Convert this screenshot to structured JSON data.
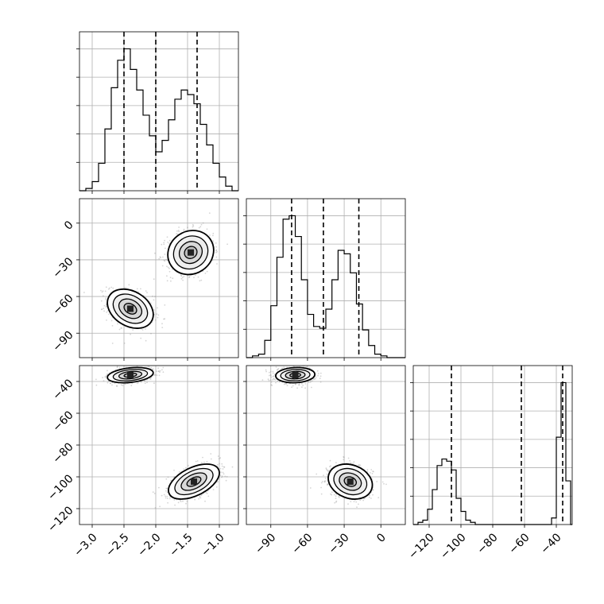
{
  "chart_data": {
    "type": "corner",
    "parameters": 3,
    "grid": true,
    "style": {
      "ink": "#000000",
      "grid": "#b0b0b0",
      "scatter": "#888888",
      "background": "#ffffff"
    },
    "axes": [
      {
        "range": [
          -3.2,
          -0.7
        ],
        "ticks": [
          -3.0,
          -2.5,
          -2.0,
          -1.5,
          -1.0
        ],
        "tick_labels": [
          "−3.0",
          "−2.5",
          "−2.0",
          "−1.5",
          "−1.0"
        ],
        "quantiles": [
          -2.5,
          -2.0,
          -1.35
        ]
      },
      {
        "range": [
          -110,
          20
        ],
        "ticks": [
          -90,
          -60,
          -30,
          0
        ],
        "tick_labels": [
          "−90",
          "−60",
          "−30",
          "0"
        ],
        "quantiles": [
          -73,
          -47,
          -18
        ]
      },
      {
        "range": [
          -130,
          -30
        ],
        "ticks": [
          -120,
          -100,
          -80,
          -60,
          -40
        ],
        "tick_labels": [
          "−120",
          "−100",
          "−80",
          "−60",
          "−40"
        ],
        "quantiles": [
          -106,
          -62,
          -36
        ]
      }
    ],
    "histograms": [
      {
        "param": 0,
        "bin_edges": [
          -3.2,
          -3.1,
          -3.0,
          -2.9,
          -2.8,
          -2.7,
          -2.6,
          -2.5,
          -2.4,
          -2.3,
          -2.2,
          -2.1,
          -2.0,
          -1.9,
          -1.8,
          -1.7,
          -1.6,
          -1.5,
          -1.4,
          -1.3,
          -1.2,
          -1.1,
          -1.0,
          -0.9,
          -0.8,
          -0.7
        ],
        "counts": [
          0,
          1,
          4,
          12,
          27,
          45,
          57,
          62,
          53,
          44,
          33,
          24,
          17,
          22,
          31,
          40,
          44,
          42,
          38,
          29,
          20,
          12,
          6,
          2,
          0
        ]
      },
      {
        "param": 1,
        "bin_edges": [
          -110,
          -105,
          -100,
          -95,
          -90,
          -85,
          -80,
          -75,
          -70,
          -65,
          -60,
          -55,
          -50,
          -45,
          -40,
          -35,
          -30,
          -25,
          -20,
          -15,
          -10,
          -5,
          0,
          5,
          10,
          15,
          20
        ],
        "counts": [
          0,
          1,
          2,
          10,
          30,
          58,
          80,
          82,
          70,
          45,
          25,
          18,
          17,
          28,
          45,
          62,
          60,
          49,
          31,
          16,
          7,
          2,
          1,
          0,
          0,
          0
        ]
      },
      {
        "param": 2,
        "bin_edges": [
          -130,
          -127,
          -124,
          -121,
          -118,
          -115,
          -112,
          -109,
          -106,
          -103,
          -100,
          -97,
          -94,
          -91,
          -88,
          -85,
          -82,
          -79,
          -76,
          -73,
          -70,
          -67,
          -64,
          -61,
          -58,
          -55,
          -52,
          -49,
          -46,
          -43,
          -40,
          -37,
          -34,
          -31,
          -30
        ],
        "counts": [
          0,
          1,
          2,
          7,
          16,
          27,
          30,
          29,
          25,
          12,
          6,
          2,
          1,
          0,
          0,
          0,
          0,
          0,
          0,
          0,
          0,
          0,
          0,
          0,
          0,
          0,
          0,
          0,
          0,
          3,
          40,
          65,
          20,
          0
        ]
      }
    ],
    "pairs": [
      {
        "x_param": 0,
        "y_param": 1,
        "clusters": [
          {
            "mean": [
              -2.4,
              -70
            ],
            "std": [
              0.18,
              8
            ],
            "corr": -0.3,
            "weight": 0.5
          },
          {
            "mean": [
              -1.45,
              -24
            ],
            "std": [
              0.18,
              9
            ],
            "corr": 0.1,
            "weight": 0.5
          }
        ]
      },
      {
        "x_param": 0,
        "y_param": 2,
        "clusters": [
          {
            "mean": [
              -2.4,
              -36
            ],
            "std": [
              0.18,
              2.4
            ],
            "corr": 0.3,
            "weight": 0.5
          },
          {
            "mean": [
              -1.4,
              -103
            ],
            "std": [
              0.2,
              5.5
            ],
            "corr": 0.5,
            "weight": 0.5
          }
        ]
      },
      {
        "x_param": 1,
        "y_param": 2,
        "clusters": [
          {
            "mean": [
              -70,
              -36
            ],
            "std": [
              8,
              2.4
            ],
            "corr": 0.1,
            "weight": 0.5
          },
          {
            "mean": [
              -25,
              -103
            ],
            "std": [
              9,
              5.5
            ],
            "corr": -0.2,
            "weight": 0.5
          }
        ]
      }
    ]
  }
}
